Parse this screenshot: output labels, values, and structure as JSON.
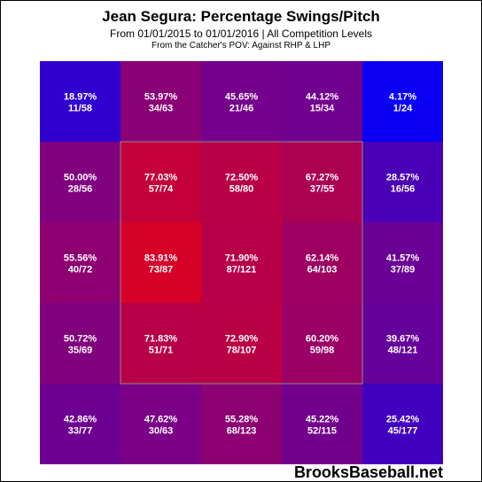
{
  "header": {
    "title": "Jean Segura: Percentage Swings/Pitch",
    "subtitle": "From 01/01/2015 to 01/01/2016 | All Competition Levels",
    "note": "From the Catcher's POV:  Against RHP & LHP"
  },
  "brand": "BrooksBaseball.net",
  "chart_data": {
    "type": "heatmap",
    "title": "Jean Segura: Percentage Swings/Pitch",
    "rows": 5,
    "cols": 5,
    "strike_zone": "inner 3x3 cells",
    "color_scale": {
      "low": "#0000FF",
      "high": "#FF0000"
    },
    "cells": [
      [
        {
          "pct": "18.97%",
          "frac": "11/58",
          "value": 18.97
        },
        {
          "pct": "53.97%",
          "frac": "34/63",
          "value": 53.97
        },
        {
          "pct": "45.65%",
          "frac": "21/46",
          "value": 45.65
        },
        {
          "pct": "44.12%",
          "frac": "15/34",
          "value": 44.12
        },
        {
          "pct": "4.17%",
          "frac": "1/24",
          "value": 4.17
        }
      ],
      [
        {
          "pct": "50.00%",
          "frac": "28/56",
          "value": 50.0
        },
        {
          "pct": "77.03%",
          "frac": "57/74",
          "value": 77.03
        },
        {
          "pct": "72.50%",
          "frac": "58/80",
          "value": 72.5
        },
        {
          "pct": "67.27%",
          "frac": "37/55",
          "value": 67.27
        },
        {
          "pct": "28.57%",
          "frac": "16/56",
          "value": 28.57
        }
      ],
      [
        {
          "pct": "55.56%",
          "frac": "40/72",
          "value": 55.56
        },
        {
          "pct": "83.91%",
          "frac": "73/87",
          "value": 83.91
        },
        {
          "pct": "71.90%",
          "frac": "87/121",
          "value": 71.9
        },
        {
          "pct": "62.14%",
          "frac": "64/103",
          "value": 62.14
        },
        {
          "pct": "41.57%",
          "frac": "37/89",
          "value": 41.57
        }
      ],
      [
        {
          "pct": "50.72%",
          "frac": "35/69",
          "value": 50.72
        },
        {
          "pct": "71.83%",
          "frac": "51/71",
          "value": 71.83
        },
        {
          "pct": "72.90%",
          "frac": "78/107",
          "value": 72.9
        },
        {
          "pct": "60.20%",
          "frac": "59/98",
          "value": 60.2
        },
        {
          "pct": "39.67%",
          "frac": "48/121",
          "value": 39.67
        }
      ],
      [
        {
          "pct": "42.86%",
          "frac": "33/77",
          "value": 42.86
        },
        {
          "pct": "47.62%",
          "frac": "30/63",
          "value": 47.62
        },
        {
          "pct": "55.28%",
          "frac": "68/123",
          "value": 55.28
        },
        {
          "pct": "45.22%",
          "frac": "52/115",
          "value": 45.22
        },
        {
          "pct": "25.42%",
          "frac": "45/177",
          "value": 25.42
        }
      ]
    ]
  }
}
